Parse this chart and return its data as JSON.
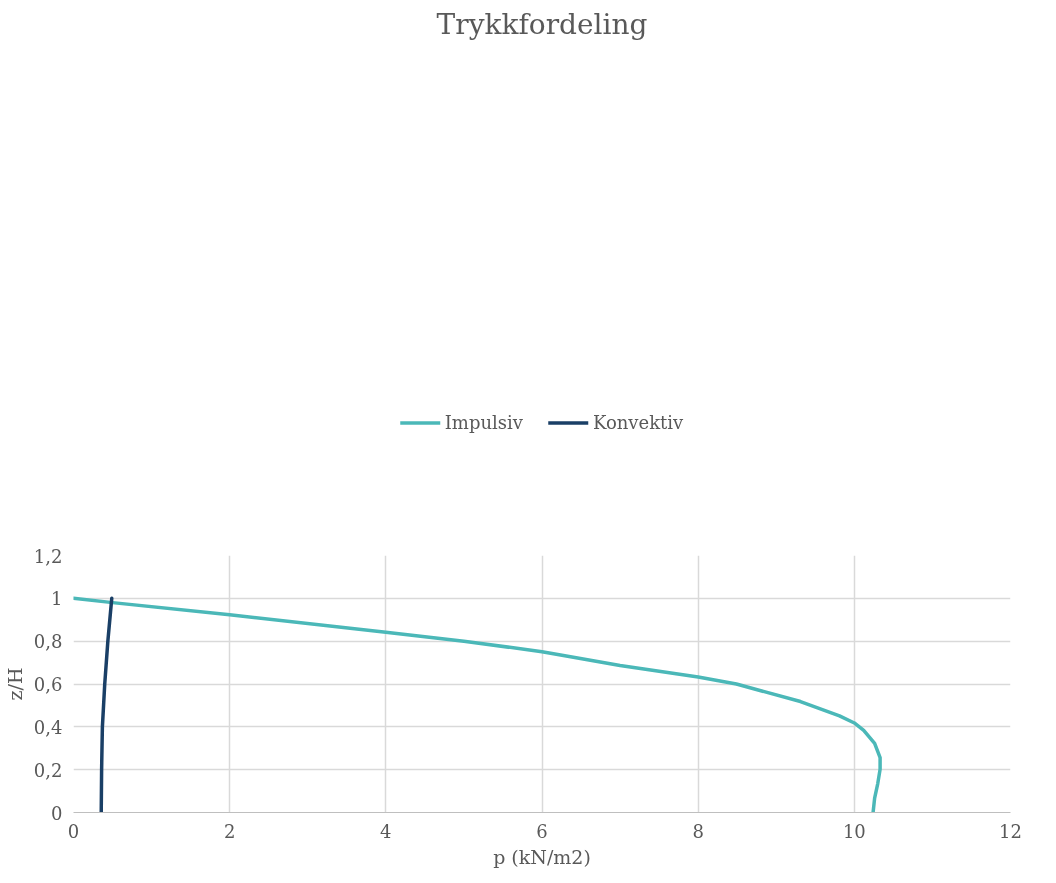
{
  "chart_data": {
    "type": "line",
    "title": "Trykkfordeling",
    "xlabel": "p (kN/m2)",
    "ylabel": "z/H",
    "xlim": [
      0,
      12
    ],
    "xticks": [
      0,
      2,
      4,
      6,
      8,
      10,
      12
    ],
    "ylim": [
      0,
      1.2
    ],
    "yticks": [
      0,
      {
        "value": 0.2,
        "label": "0,2"
      },
      {
        "value": 0.4,
        "label": "0,4"
      },
      {
        "value": 0.6,
        "label": "0,6"
      },
      {
        "value": 0.8,
        "label": "0,8"
      },
      1,
      {
        "value": 1.2,
        "label": "1,2"
      }
    ],
    "grid": true,
    "legend": "top",
    "marker": "none",
    "line_style": "solid",
    "series": [
      {
        "name": "Impulsiv",
        "color": "#4bb8b8",
        "x": [
          0,
          0.5,
          2,
          4,
          5,
          6,
          6.22,
          7,
          8,
          8.49,
          9.31,
          9.81,
          10,
          10.12,
          10.26,
          10.33,
          10.33,
          10.3,
          10.26,
          10.24
        ],
        "values": [
          1,
          0.98,
          0.923,
          0.842,
          0.8,
          0.751,
          0.737,
          0.686,
          0.633,
          0.6,
          0.518,
          0.451,
          0.418,
          0.384,
          0.323,
          0.256,
          0.202,
          0.135,
          0.067,
          0
        ]
      },
      {
        "name": "Konvektiv",
        "color": "#1a3f66",
        "x": [
          0.355,
          0.36,
          0.37,
          0.4,
          0.44,
          0.49
        ],
        "values": [
          0,
          0.2,
          0.4,
          0.6,
          0.8,
          1
        ]
      }
    ]
  }
}
